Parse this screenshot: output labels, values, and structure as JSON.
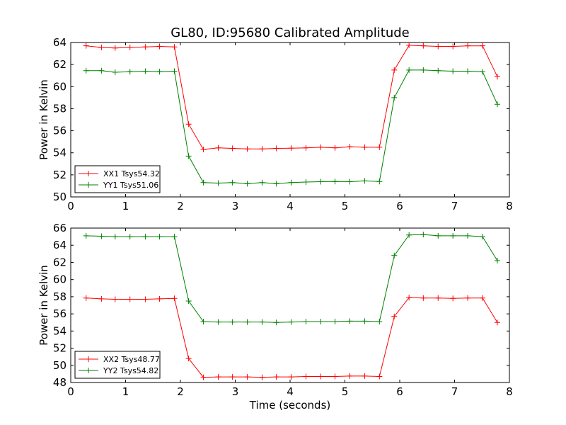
{
  "figure": {
    "title": "GL80, ID:95680 Calibrated Amplitude"
  },
  "chart_data": [
    {
      "type": "line",
      "title": "GL80, ID:95680 Calibrated Amplitude",
      "xlabel": "",
      "ylabel": "Power in Kelvin",
      "xlim": [
        0,
        8
      ],
      "ylim": [
        50,
        64
      ],
      "xticks": [
        0,
        1,
        2,
        3,
        4,
        5,
        6,
        7,
        8
      ],
      "yticks": [
        50,
        52,
        54,
        56,
        58,
        60,
        62,
        64
      ],
      "grid": false,
      "legend": "lower-left",
      "x": [
        0.28,
        0.56,
        0.81,
        1.08,
        1.36,
        1.62,
        1.89,
        2.15,
        2.42,
        2.69,
        2.95,
        3.22,
        3.49,
        3.75,
        4.02,
        4.29,
        4.56,
        4.82,
        5.09,
        5.36,
        5.63,
        5.9,
        6.17,
        6.43,
        6.7,
        6.97,
        7.24,
        7.51,
        7.78
      ],
      "series": [
        {
          "name": "XX1 Tsys54.32",
          "color": "#ff0000",
          "values": [
            63.7,
            63.55,
            63.5,
            63.55,
            63.6,
            63.65,
            63.6,
            56.6,
            54.3,
            54.45,
            54.4,
            54.35,
            54.35,
            54.4,
            54.42,
            54.45,
            54.5,
            54.45,
            54.55,
            54.5,
            54.5,
            61.5,
            63.75,
            63.7,
            63.65,
            63.65,
            63.7,
            63.7,
            60.9
          ]
        },
        {
          "name": "YY1 Tsys51.06",
          "color": "#008000",
          "values": [
            61.45,
            61.45,
            61.3,
            61.35,
            61.4,
            61.35,
            61.4,
            53.7,
            51.3,
            51.25,
            51.3,
            51.2,
            51.3,
            51.2,
            51.3,
            51.35,
            51.38,
            51.4,
            51.38,
            51.45,
            51.4,
            59.0,
            61.5,
            61.5,
            61.45,
            61.4,
            61.4,
            61.35,
            58.4
          ]
        }
      ]
    },
    {
      "type": "line",
      "title": "",
      "xlabel": "Time (seconds)",
      "ylabel": "Power in Kelvin",
      "xlim": [
        0,
        8
      ],
      "ylim": [
        48,
        66
      ],
      "xticks": [
        0,
        1,
        2,
        3,
        4,
        5,
        6,
        7,
        8
      ],
      "yticks": [
        48,
        50,
        52,
        54,
        56,
        58,
        60,
        62,
        64,
        66
      ],
      "grid": false,
      "legend": "lower-left",
      "x": [
        0.28,
        0.56,
        0.81,
        1.08,
        1.36,
        1.62,
        1.89,
        2.15,
        2.42,
        2.69,
        2.95,
        3.22,
        3.49,
        3.75,
        4.02,
        4.29,
        4.56,
        4.82,
        5.09,
        5.36,
        5.63,
        5.9,
        6.17,
        6.43,
        6.7,
        6.97,
        7.24,
        7.51,
        7.78
      ],
      "series": [
        {
          "name": "XX2 Tsys48.77",
          "color": "#ff0000",
          "values": [
            57.85,
            57.75,
            57.7,
            57.7,
            57.7,
            57.75,
            57.8,
            50.8,
            48.6,
            48.65,
            48.65,
            48.65,
            48.6,
            48.65,
            48.65,
            48.7,
            48.7,
            48.7,
            48.75,
            48.75,
            48.7,
            55.7,
            57.9,
            57.85,
            57.85,
            57.8,
            57.85,
            57.85,
            55.0
          ]
        },
        {
          "name": "YY2 Tsys54.82",
          "color": "#008000",
          "values": [
            65.1,
            65.05,
            65.0,
            65.0,
            65.0,
            65.0,
            65.0,
            57.5,
            55.1,
            55.05,
            55.05,
            55.05,
            55.05,
            55.0,
            55.05,
            55.1,
            55.1,
            55.1,
            55.15,
            55.15,
            55.1,
            62.8,
            65.2,
            65.25,
            65.1,
            65.1,
            65.1,
            65.0,
            62.2
          ]
        }
      ]
    }
  ]
}
